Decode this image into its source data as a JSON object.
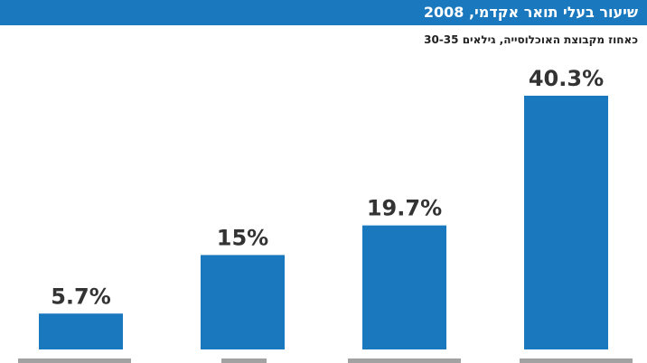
{
  "header": {
    "title": "שיעור בעלי תואר אקדמי, 2008",
    "subtitle": "כאחוז מקבוצת האוכלוסייה, גילאים 30-35"
  },
  "colors": {
    "bar": "#1a78bf",
    "title_bg": "#1a78bf",
    "value_label": "#333333"
  },
  "chart_data": {
    "type": "bar",
    "title": "שיעור בעלי תואר אקדמי, 2008",
    "subtitle": "כאחוז מקבוצת האוכלוסייה, גילאים 30-35",
    "categories": [
      "",
      "",
      "",
      ""
    ],
    "values": [
      5.7,
      15,
      19.7,
      40.3
    ],
    "data_labels": [
      "5.7%",
      "15%",
      "19.7%",
      "40.3%"
    ],
    "ylim": [
      0,
      45
    ],
    "grid": false,
    "legend": "none"
  }
}
